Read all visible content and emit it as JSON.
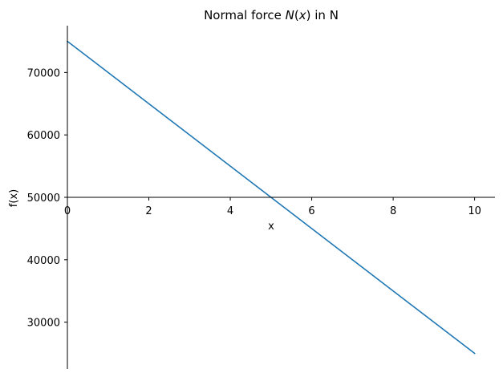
{
  "chart_data": {
    "type": "line",
    "title_prefix": "Normal force ",
    "title_italic": "N",
    "title_args": "(",
    "title_var": "x",
    "title_close": ")",
    "title_suffix": " in N",
    "xlabel": "x",
    "ylabel": "f(x)",
    "xlim": [
      0,
      10.5
    ],
    "ylim": [
      22500,
      77500
    ],
    "x_axis_at_y": 50000,
    "y_axis_at_x": 0,
    "xticks": [
      0,
      2,
      4,
      6,
      8,
      10
    ],
    "xtick_labels": [
      "0",
      "2",
      "4",
      "6",
      "8",
      "10"
    ],
    "yticks": [
      30000,
      40000,
      50000,
      60000,
      70000
    ],
    "ytick_labels": [
      "30000",
      "40000",
      "50000",
      "60000",
      "70000"
    ],
    "grid": false,
    "series": [
      {
        "x": [
          0,
          10
        ],
        "y": [
          75000,
          25000
        ],
        "color": "#1f77b4"
      }
    ]
  }
}
